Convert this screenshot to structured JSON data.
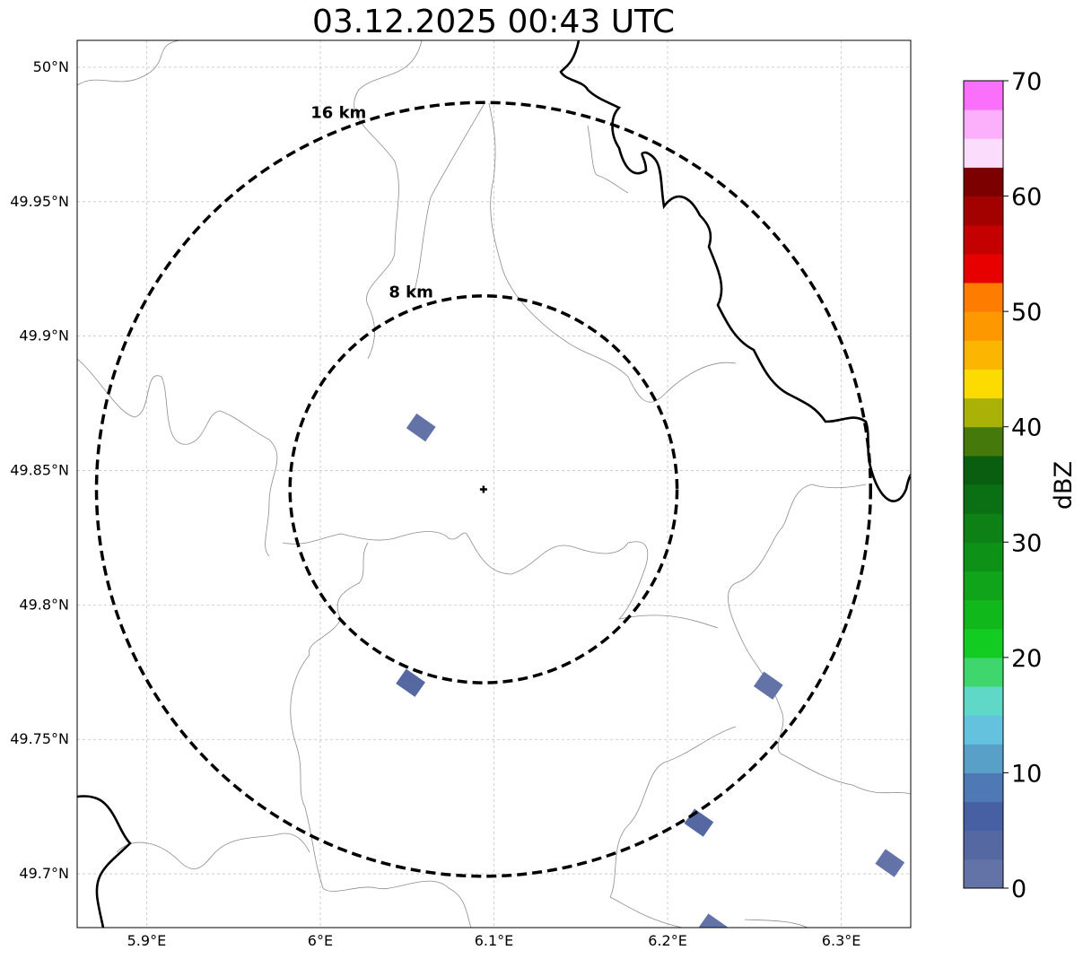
{
  "title": "03.12.2025 00:43 UTC",
  "map": {
    "lon_range": [
      5.86,
      6.34
    ],
    "lat_range": [
      49.68,
      50.01
    ],
    "gridlines": true,
    "lon_ticks": [
      {
        "value": 5.9,
        "label": "5.9°E"
      },
      {
        "value": 6.0,
        "label": "6°E"
      },
      {
        "value": 6.1,
        "label": "6.1°E"
      },
      {
        "value": 6.2,
        "label": "6.2°E"
      },
      {
        "value": 6.3,
        "label": "6.3°E"
      }
    ],
    "lat_ticks": [
      {
        "value": 50.0,
        "label": "50°N"
      },
      {
        "value": 49.95,
        "label": "49.95°N"
      },
      {
        "value": 49.9,
        "label": "49.9°N"
      },
      {
        "value": 49.85,
        "label": "49.85°N"
      },
      {
        "value": 49.8,
        "label": "49.8°N"
      },
      {
        "value": 49.75,
        "label": "49.75°N"
      },
      {
        "value": 49.7,
        "label": "49.7°N"
      }
    ],
    "center": {
      "lon": 6.094,
      "lat": 49.843,
      "marker": "plus-marker"
    },
    "rings": [
      {
        "radius_km": 8,
        "label": "8 km"
      },
      {
        "radius_km": 16,
        "label": "16 km"
      }
    ],
    "reflectivity_cells": [
      {
        "lon": 6.058,
        "lat": 49.866,
        "dbz": 2
      },
      {
        "lon": 6.052,
        "lat": 49.771,
        "dbz": 4
      },
      {
        "lon": 6.258,
        "lat": 49.77,
        "dbz": 2
      },
      {
        "lon": 6.218,
        "lat": 49.719,
        "dbz": 3
      },
      {
        "lon": 6.328,
        "lat": 49.704,
        "dbz": 2
      },
      {
        "lon": 6.226,
        "lat": 49.68,
        "dbz": 2
      }
    ],
    "colors": {
      "country_border": "#000000",
      "admin_border": "#8c8c8c",
      "rings": "#000000",
      "precip": "#5a6fa5"
    }
  },
  "colorbar": {
    "label": "dBZ",
    "min": 0,
    "max": 70,
    "step": 2.5,
    "tick_labels": [
      "0",
      "10",
      "20",
      "30",
      "40",
      "50",
      "60",
      "70"
    ],
    "colors": [
      "#6373a8",
      "#5568a2",
      "#4660a3",
      "#4e79b4",
      "#59a0c8",
      "#64c2de",
      "#5fd8c8",
      "#3fd66e",
      "#13cc22",
      "#10b81b",
      "#0fa41a",
      "#0d9217",
      "#0d8115",
      "#0b7013",
      "#095e10",
      "#45790b",
      "#aab207",
      "#fcdc00",
      "#fcb500",
      "#fd9800",
      "#fe7c00",
      "#e60000",
      "#c40000",
      "#a30000",
      "#7d0000",
      "#fbdcfd",
      "#fcb0fc",
      "#fb70fb",
      "#f234ec"
    ]
  }
}
